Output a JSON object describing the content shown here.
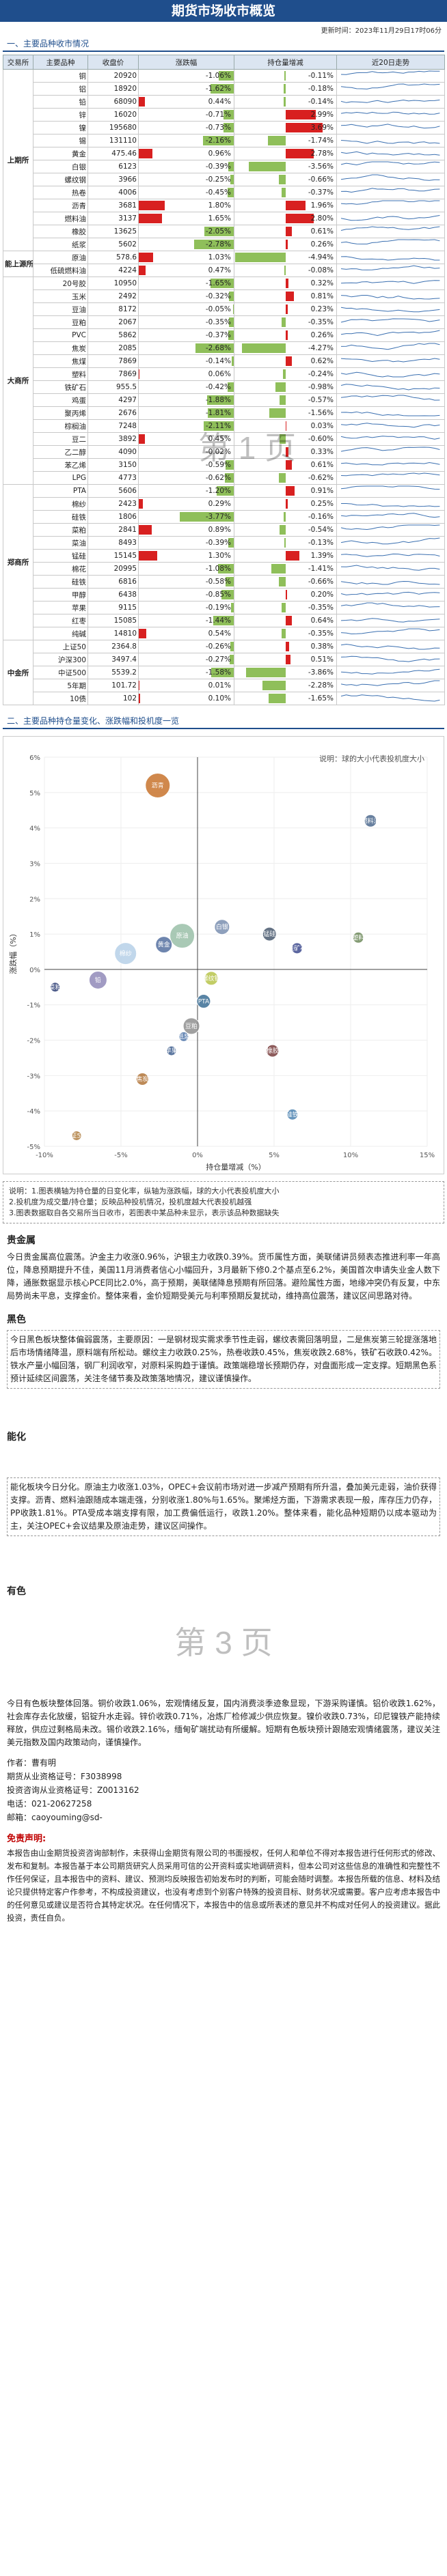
{
  "header": {
    "title": "期货市场收市概览",
    "update_time": "更新时间：2023年11月29日17时06分"
  },
  "table_section_title": "一、主要品种收市情况",
  "columns": [
    "交易所",
    "主要品种",
    "收盘价",
    "涨跌幅",
    "持仓量增减",
    "近20日走势"
  ],
  "exchanges": [
    {
      "name": "上期所",
      "rows": [
        {
          "name": "铜",
          "price": "20920",
          "change": "-1.06%",
          "pct": -1.06,
          "oi": "-0.11%",
          "oi_pct": -0.11
        },
        {
          "name": "铝",
          "price": "18920",
          "change": "-1.62%",
          "pct": -1.62,
          "oi": "-0.18%",
          "oi_pct": -0.18
        },
        {
          "name": "铅",
          "price": "68090",
          "change": "0.44%",
          "pct": 0.44,
          "oi": "-0.14%",
          "oi_pct": -0.14
        },
        {
          "name": "锌",
          "price": "16020",
          "change": "-0.71%",
          "pct": -0.71,
          "oi": "2.99%",
          "oi_pct": 2.99
        },
        {
          "name": "镍",
          "price": "195680",
          "change": "-0.73%",
          "pct": -0.73,
          "oi": "3.69%",
          "oi_pct": 3.69
        },
        {
          "name": "锡",
          "price": "131110",
          "change": "-2.16%",
          "pct": -2.16,
          "oi": "-1.74%",
          "oi_pct": -1.74
        },
        {
          "name": "黄金",
          "price": "475.46",
          "change": "0.96%",
          "pct": 0.96,
          "oi": "2.78%",
          "oi_pct": 2.78
        },
        {
          "name": "白银",
          "price": "6123",
          "change": "-0.39%",
          "pct": -0.39,
          "oi": "-3.56%",
          "oi_pct": -3.56
        },
        {
          "name": "螺纹钢",
          "price": "3966",
          "change": "-0.25%",
          "pct": -0.25,
          "oi": "-0.66%",
          "oi_pct": -0.66
        },
        {
          "name": "热卷",
          "price": "4006",
          "change": "-0.45%",
          "oi": "-0.37%",
          "pct": -0.45,
          "oi_pct": -0.37
        },
        {
          "name": "沥青",
          "price": "3681",
          "change": "1.80%",
          "pct": 1.8,
          "oi": "1.96%",
          "oi_pct": 1.96
        },
        {
          "name": "燃料油",
          "price": "3137",
          "change": "1.65%",
          "pct": 1.65,
          "oi": "2.80%",
          "oi_pct": 2.8
        },
        {
          "name": "橡胶",
          "price": "13625",
          "change": "-2.05%",
          "pct": -2.05,
          "oi": "0.61%",
          "oi_pct": 0.61
        },
        {
          "name": "纸浆",
          "price": "5602",
          "change": "-2.78%",
          "pct": -2.78,
          "oi": "0.26%",
          "oi_pct": 0.26
        }
      ]
    },
    {
      "name": "能上源所",
      "rows": [
        {
          "name": "原油",
          "price": "578.6",
          "change": "1.03%",
          "pct": 1.03,
          "oi": "-4.94%",
          "oi_pct": -4.94
        },
        {
          "name": "低硫燃料油",
          "price": "4224",
          "change": "0.47%",
          "pct": 0.47,
          "oi": "-0.08%",
          "oi_pct": -0.08
        }
      ]
    },
    {
      "name": "大商所",
      "rows": [
        {
          "name": "20号胶",
          "price": "10950",
          "change": "-1.65%",
          "pct": -1.65,
          "oi": "0.32%",
          "oi_pct": 0.32
        },
        {
          "name": "玉米",
          "price": "2492",
          "change": "-0.32%",
          "pct": -0.32,
          "oi": "0.81%",
          "oi_pct": 0.81
        },
        {
          "name": "豆油",
          "price": "8172",
          "change": "-0.05%",
          "pct": -0.05,
          "oi": "0.23%",
          "oi_pct": 0.23
        },
        {
          "name": "豆粕",
          "price": "2067",
          "change": "-0.35%",
          "pct": -0.35,
          "oi": "-0.35%",
          "oi_pct": -0.35
        },
        {
          "name": "PVC",
          "price": "5862",
          "change": "-0.37%",
          "pct": -0.37,
          "oi": "0.26%",
          "oi_pct": 0.26
        },
        {
          "name": "焦炭",
          "price": "2085",
          "change": "-2.68%",
          "pct": -2.68,
          "oi": "-4.27%",
          "oi_pct": -4.27
        },
        {
          "name": "焦煤",
          "price": "7869",
          "change": "-0.14%",
          "pct": -0.14,
          "oi": "0.62%",
          "oi_pct": 0.62
        },
        {
          "name": "塑料",
          "price": "7869",
          "change": "0.06%",
          "pct": 0.06,
          "oi": "-0.24%",
          "oi_pct": -0.24
        },
        {
          "name": "铁矿石",
          "price": "955.5",
          "change": "-0.42%",
          "pct": -0.42,
          "oi": "-0.98%",
          "oi_pct": -0.98
        },
        {
          "name": "鸡蛋",
          "price": "4297",
          "change": "-1.88%",
          "pct": -1.88,
          "oi": "-0.57%",
          "oi_pct": -0.57
        },
        {
          "name": "聚丙烯",
          "price": "2676",
          "change": "-1.81%",
          "pct": -1.81,
          "oi": "-1.56%",
          "oi_pct": -1.56
        },
        {
          "name": "棕榈油",
          "price": "7248",
          "change": "-2.11%",
          "pct": -2.11,
          "oi": "0.03%",
          "oi_pct": 0.03
        },
        {
          "name": "豆二",
          "price": "3892",
          "change": "0.45%",
          "pct": 0.45,
          "oi": "-0.60%",
          "oi_pct": -0.6
        },
        {
          "name": "乙二醇",
          "price": "4090",
          "change": "-0.02%",
          "pct": -0.02,
          "oi": "0.33%",
          "oi_pct": 0.33
        },
        {
          "name": "苯乙烯",
          "price": "3150",
          "change": "-0.59%",
          "pct": -0.59,
          "oi": "0.61%",
          "oi_pct": 0.61
        },
        {
          "name": "LPG",
          "price": "4773",
          "change": "-0.62%",
          "pct": -0.62,
          "oi": "-0.62%",
          "oi_pct": -0.62
        }
      ]
    },
    {
      "name": "郑商所",
      "rows": [
        {
          "name": "PTA",
          "price": "5606",
          "change": "-1.20%",
          "pct": -1.2,
          "oi": "0.91%",
          "oi_pct": 0.91
        },
        {
          "name": "棉纱",
          "price": "2423",
          "change": "0.29%",
          "pct": 0.29,
          "oi": "0.25%",
          "oi_pct": 0.25
        },
        {
          "name": "硅铁",
          "price": "1806",
          "change": "-3.77%",
          "pct": -3.77,
          "oi": "-0.16%",
          "oi_pct": -0.16
        },
        {
          "name": "菜粕",
          "price": "2841",
          "change": "0.89%",
          "pct": 0.89,
          "oi": "-0.54%",
          "oi_pct": -0.54
        },
        {
          "name": "菜油",
          "price": "8493",
          "change": "-0.39%",
          "pct": -0.39,
          "oi": "-0.13%",
          "oi_pct": -0.13
        },
        {
          "name": "锰硅",
          "price": "15145",
          "change": "1.30%",
          "pct": 1.3,
          "oi": "1.39%",
          "oi_pct": 1.39
        },
        {
          "name": "棉花",
          "price": "20995",
          "change": "-1.08%",
          "pct": -1.08,
          "oi": "-1.41%",
          "oi_pct": -1.41
        },
        {
          "name": "硅铁",
          "price": "6816",
          "change": "-0.58%",
          "pct": -0.58,
          "oi": "-0.66%",
          "oi_pct": -0.66
        },
        {
          "name": "甲醇",
          "price": "6438",
          "change": "-0.85%",
          "pct": -0.85,
          "oi": "0.20%",
          "oi_pct": 0.2
        },
        {
          "name": "苹果",
          "price": "9115",
          "change": "-0.19%",
          "pct": -0.19,
          "oi": "-0.35%",
          "oi_pct": -0.35
        },
        {
          "name": "红枣",
          "price": "15085",
          "change": "-1.44%",
          "pct": -1.44,
          "oi": "0.64%",
          "oi_pct": 0.64
        },
        {
          "name": "纯碱",
          "price": "14810",
          "change": "0.54%",
          "pct": 0.54,
          "oi": "-0.35%",
          "oi_pct": -0.35
        }
      ]
    },
    {
      "name": "中金所",
      "rows": [
        {
          "name": "上证50",
          "price": "2364.8",
          "change": "-0.26%",
          "pct": -0.26,
          "oi": "0.38%",
          "oi_pct": 0.38
        },
        {
          "name": "沪深300",
          "price": "3497.4",
          "change": "-0.27%",
          "pct": -0.27,
          "oi": "0.51%",
          "oi_pct": 0.51
        },
        {
          "name": "中证500",
          "price": "5539.2",
          "change": "-1.58%",
          "pct": -1.58,
          "oi": "-3.86%",
          "oi_pct": -3.86
        },
        {
          "name": "5年期",
          "price": "101.72",
          "change": "0.01%",
          "pct": 0.01,
          "oi": "-2.28%",
          "oi_pct": -2.28
        },
        {
          "name": "10债",
          "price": "102",
          "change": "0.10%",
          "pct": 0.1,
          "oi": "-1.65%",
          "oi_pct": -1.65
        }
      ]
    }
  ],
  "watermark_page1": "第 1 页",
  "scatter_section_title": "二、主要品种持仓量变化、涨跌幅和投机度一览",
  "chart_data": {
    "type": "scatter",
    "title": "",
    "note": "说明：球的大小代表投机度大小",
    "xlabel": "持仓量增减（%）",
    "ylabel": "涨跌幅（%）",
    "xlim": [
      -10,
      15
    ],
    "ylim": [
      -5,
      6
    ],
    "xticks": [
      "-10%",
      "-5%",
      "0%",
      "5%",
      "10%",
      "15%"
    ],
    "yticks": [
      "-5%",
      "-4%",
      "-3%",
      "-2%",
      "-1%",
      "0%",
      "1%",
      "2%",
      "3%",
      "4%",
      "5%",
      "6%"
    ],
    "points": [
      {
        "label": "沥青",
        "x": -2.6,
        "y": 5.2,
        "r": 18,
        "color": "#c8732d"
      },
      {
        "label": "燃料油",
        "x": 11.3,
        "y": 4.2,
        "r": 9,
        "color": "#4d6a8e"
      },
      {
        "label": "原油",
        "x": -1.0,
        "y": 0.95,
        "r": 18,
        "color": "#9ac0a8"
      },
      {
        "label": "棉纱",
        "x": -4.7,
        "y": 0.45,
        "r": 16,
        "color": "#b6d0e8"
      },
      {
        "label": "黄金",
        "x": -2.2,
        "y": 0.7,
        "r": 12,
        "color": "#5570a0"
      },
      {
        "label": "白银",
        "x": 1.6,
        "y": 1.2,
        "r": 11,
        "color": "#7a8fb0"
      },
      {
        "label": "锰硅",
        "x": 4.7,
        "y": 1.0,
        "r": 10,
        "color": "#4a5a70"
      },
      {
        "label": "塑料",
        "x": 10.5,
        "y": 0.9,
        "r": 8,
        "color": "#6d8a5a"
      },
      {
        "label": "铁矿石",
        "x": 6.5,
        "y": 0.6,
        "r": 8,
        "color": "#404c8f"
      },
      {
        "label": "铅",
        "x": -6.5,
        "y": -0.3,
        "r": 13,
        "color": "#9089b8"
      },
      {
        "label": "螺纹钢",
        "x": 0.9,
        "y": -0.25,
        "r": 10,
        "color": "#b7c44a"
      },
      {
        "label": "PTA",
        "x": 0.4,
        "y": -0.9,
        "r": 10,
        "color": "#3c6f95"
      },
      {
        "label": "豆粕",
        "x": -0.4,
        "y": -1.6,
        "r": 12,
        "color": "#8f8f8f"
      },
      {
        "label": "橡胶",
        "x": 4.9,
        "y": -2.3,
        "r": 9,
        "color": "#7a3f3f"
      },
      {
        "label": "焦炭",
        "x": -3.6,
        "y": -3.1,
        "r": 9,
        "color": "#b2763a"
      },
      {
        "label": "纸浆",
        "x": -0.9,
        "y": -1.9,
        "r": 7,
        "color": "#4c73a8"
      },
      {
        "label": "苹果",
        "x": -1.7,
        "y": -2.3,
        "r": 7,
        "color": "#3e5e8e"
      },
      {
        "label": "菜粕",
        "x": -9.3,
        "y": -0.5,
        "r": 7,
        "color": "#2e3e74"
      },
      {
        "label": "硅铁",
        "x": 6.2,
        "y": -4.1,
        "r": 8,
        "color": "#4e84b1"
      },
      {
        "label": "中证500",
        "x": -7.9,
        "y": -4.7,
        "r": 7,
        "color": "#b07f42"
      }
    ]
  },
  "legend_notes": [
    "说明：1.图表横轴为持仓量的日变化率，纵轴为涨跌幅，球的大小代表投机度大小",
    "2.投机度为成交量/持仓量；反映品种投机情况，投机度越大代表投机越强",
    "3.图表数据取自各交易所当日收市，若图表中某品种未显示，表示该品种数据缺失"
  ],
  "sections": [
    {
      "title": "贵金属",
      "body": "今日贵金属高位震荡。沪金主力收涨0.96%，沪银主力收跌0.39%。货币属性方面，美联储讲员频表态推进利率一年高位，降息预期提升不佳，美国11月消费者信心小幅回升，3月最新下修0.2个基点至6.2%，美国首次申请失业金人数下降，通胀数据显示核心PCE同比2.0%，高于预期，美联储降息预期有所回落。避险属性方面，地缘冲突仍有反复，中东局势尚未平息，支撑金价。整体来看，金价短期受美元与利率预期反复扰动，维持高位震荡，建议区间思路对待。"
    },
    {
      "title": "黑色",
      "body": "今日黑色板块整体偏弱震荡，主要原因：一是钢材现实需求季节性走弱，螺纹表需回落明显，二是焦炭第三轮提涨落地后市场情绪降温，原料端有所松动。螺纹主力收跌0.25%，热卷收跌0.45%，焦炭收跌2.68%，铁矿石收跌0.42%。铁水产量小幅回落，钢厂利润收窄，对原料采购趋于谨慎。政策端稳增长预期仍存，对盘面形成一定支撑。短期黑色系预计延续区间震荡，关注冬储节奏及政策落地情况，建议谨慎操作。"
    },
    {
      "title": "能化",
      "body": "能化板块今日分化。原油主力收涨1.03%，OPEC+会议前市场对进一步减产预期有所升温，叠加美元走弱，油价获得支撑。沥青、燃料油跟随成本端走强，分别收涨1.80%与1.65%。聚烯烃方面，下游需求表现一般，库存压力仍存，PP收跌1.81%。PTA受成本端支撑有限，加工费偏低运行，收跌1.20%。整体来看，能化品种短期仍以成本驱动为主，关注OPEC+会议结果及原油走势，建议区间操作。"
    },
    {
      "title": "有色",
      "body": "今日有色板块整体回落。铜价收跌1.06%，宏观情绪反复，国内消费淡季迹象显现，下游采购谨慎。铝价收跌1.62%，社会库存去化放缓，铝锭升水走弱。锌价收跌0.71%，冶炼厂检修减少供应恢复。镍价收跌0.73%，印尼镍铁产能持续释放，供应过剩格局未改。锡价收跌2.16%，缅甸矿端扰动有所缓解。短期有色板块预计跟随宏观情绪震荡，建议关注美元指数及国内政策动向，谨慎操作。"
    }
  ],
  "watermark_page3": "第 3 页",
  "author": {
    "label_author": "作者：",
    "name": "曹有明",
    "cert_label": "期货从业资格证号：",
    "cert": "F3038998",
    "consult_label": "投资咨询从业资格证号：",
    "consult": "Z0013162",
    "phone_label": "电话：",
    "phone": "021-20627258",
    "email_label": "邮箱：",
    "email": "caoyouming@sd-"
  },
  "disclaimer": {
    "title": "免责声明:",
    "body": "本报告由山金期货投资咨询部制作，未获得山金期货有限公司的书面授权，任何人和单位不得对本报告进行任何形式的修改、发布和复制。本报告基于本公司期货研究人员采用可信的公开资料或实地调研资料，但本公司对这些信息的准确性和完整性不作任何保证，且本报告中的资料、建议、预测均反映报告初始发布时的判断，可能会随时调整。本报告所载的信息、材料及结论只提供特定客户作参考，不构成投资建议，也没有考虑到个别客户特殊的投资目标、财务状况或需要。客户应考虑本报告中的任何意见或建议是否符合其特定状况。在任何情况下，本报告中的信息或所表述的意见并不构成对任何人的投资建议。据此投资，责任自负。"
  }
}
